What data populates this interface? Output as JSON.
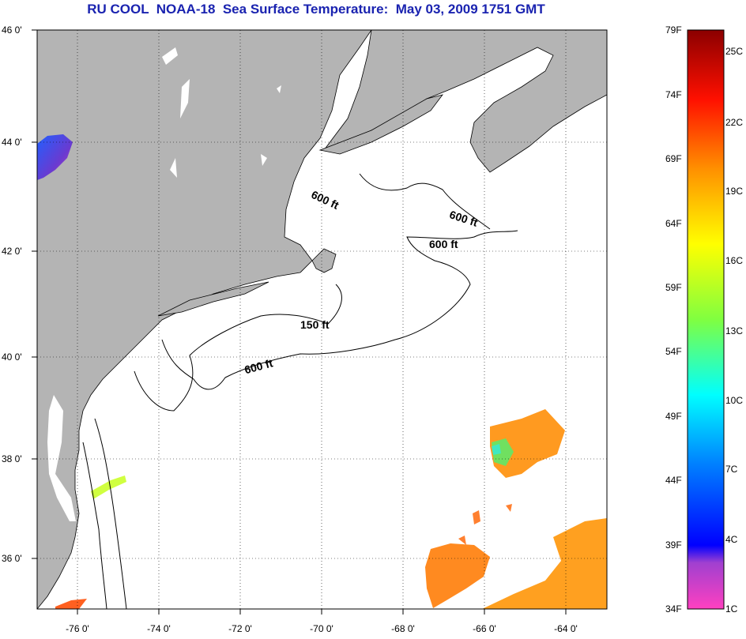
{
  "title": "RU COOL  NOAA-18  Sea Surface Temperature:  May 03, 2009 1751 GMT",
  "map": {
    "longitude_labels": [
      "-76 0'",
      "-74 0'",
      "-72 0'",
      "-70 0'",
      "-68 0'",
      "-66 0'",
      "-64 0'"
    ],
    "latitude_labels": [
      "46 0'",
      "44 0'",
      "42 0'",
      "40 0'",
      "38 0'",
      "36 0'"
    ],
    "longitude_range": [
      -77,
      -63
    ],
    "latitude_range": [
      35,
      46
    ],
    "depth_contour_labels": [
      "600 ft",
      "600 ft",
      "600 ft",
      "150 ft",
      "600 ft"
    ],
    "land_color": "#b4b4b4",
    "ocean_color": "#ffffff",
    "graticule": "dotted"
  },
  "colorbar": {
    "fahrenheit_labels": [
      "79F",
      "74F",
      "69F",
      "64F",
      "59F",
      "54F",
      "49F",
      "44F",
      "39F",
      "34F"
    ],
    "celsius_labels": [
      "25C",
      "22C",
      "19C",
      "16C",
      "13C",
      "10C",
      "7C",
      "4C",
      "1C"
    ],
    "colors": [
      "#8b0000",
      "#ff0000",
      "#ff8000",
      "#ffff00",
      "#80ff00",
      "#00ffff",
      "#0080ff",
      "#0000ff",
      "#8040c0",
      "#ff40c0"
    ]
  }
}
